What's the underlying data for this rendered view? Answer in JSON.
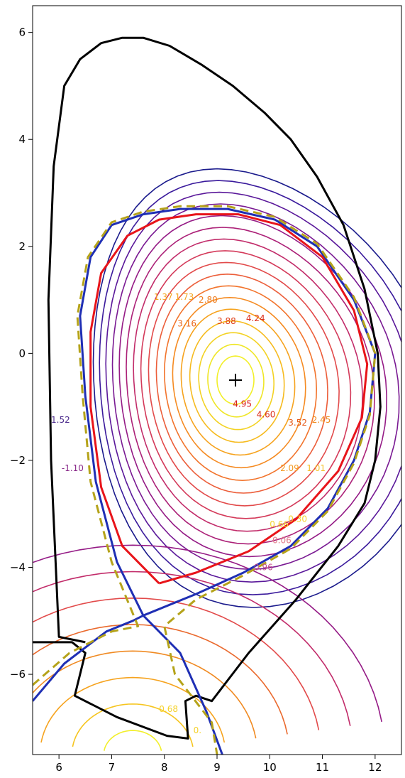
{
  "chart_data": {
    "type": "contour",
    "title": "",
    "xlabel": "",
    "ylabel": "",
    "xlim": [
      5.5,
      12.5
    ],
    "ylim": [
      -7.5,
      6.5
    ],
    "xticks": [
      "6",
      "7",
      "8",
      "9",
      "10",
      "11",
      "12"
    ],
    "yticks": [
      "6",
      "4",
      "2",
      "0",
      "−2",
      "−4",
      "−6"
    ],
    "xtick_values": [
      6,
      7,
      8,
      9,
      10,
      11,
      12
    ],
    "ytick_values": [
      6,
      4,
      2,
      0,
      -2,
      -4,
      -6
    ],
    "magnetic_axis": {
      "x": 9.35,
      "y": -0.5,
      "marker": "+"
    },
    "x_point": {
      "x": 7.6,
      "y": -4.9
    },
    "colormap": "plasma",
    "contour_labels": [
      {
        "text": "1.37",
        "x": 7.8,
        "y": 1.0,
        "color": "#f5a623"
      },
      {
        "text": "1.73",
        "x": 8.2,
        "y": 1.0,
        "color": "#f5a623"
      },
      {
        "text": "2.80",
        "x": 8.65,
        "y": 0.95,
        "color": "#ef7a1a"
      },
      {
        "text": "3.16",
        "x": 8.25,
        "y": 0.5,
        "color": "#ea6516"
      },
      {
        "text": "3.88",
        "x": 9.0,
        "y": 0.55,
        "color": "#e0411a"
      },
      {
        "text": "4.24",
        "x": 9.55,
        "y": 0.6,
        "color": "#dc301c"
      },
      {
        "text": "4.95",
        "x": 9.3,
        "y": -1.0,
        "color": "#d81b1b"
      },
      {
        "text": "4.60",
        "x": 9.75,
        "y": -1.2,
        "color": "#dc301c"
      },
      {
        "text": "3.52",
        "x": 10.35,
        "y": -1.35,
        "color": "#e55a18"
      },
      {
        "text": "2.45",
        "x": 10.8,
        "y": -1.3,
        "color": "#f08a1f"
      },
      {
        "text": "2.09",
        "x": 10.2,
        "y": -2.2,
        "color": "#f49a22"
      },
      {
        "text": "1.01",
        "x": 10.7,
        "y": -2.2,
        "color": "#f5c02a"
      },
      {
        "text": "0.66",
        "x": 10.0,
        "y": -3.25,
        "color": "#f5d22c"
      },
      {
        "text": "0.30",
        "x": 10.35,
        "y": -3.15,
        "color": "#f5d22c"
      },
      {
        "text": "0.06",
        "x": 10.05,
        "y": -3.55,
        "color": "#e07a8a"
      },
      {
        "text": "0.96",
        "x": 9.7,
        "y": -4.05,
        "color": "#c04a8a"
      },
      {
        "text": "1.52",
        "x": 5.85,
        "y": -1.3,
        "color": "#4b2a8c"
      },
      {
        "text": "-1.10",
        "x": 6.05,
        "y": -2.2,
        "color": "#8a2a8a"
      },
      {
        "text": "0.68",
        "x": 7.9,
        "y": -6.7,
        "color": "#f5d22c"
      },
      {
        "text": "0.",
        "x": 8.55,
        "y": -7.1,
        "color": "#f5d22c"
      }
    ],
    "series": [
      {
        "role": "first-wall",
        "color": "#000000",
        "x": [
          6.5,
          6.0,
          5.85,
          5.8,
          5.9,
          6.1,
          6.4,
          6.8,
          7.2,
          7.6,
          8.1,
          8.7,
          9.3,
          9.9,
          10.4,
          10.9,
          11.4,
          11.8,
          12.05,
          12.1,
          12.0,
          11.8,
          11.3,
          10.5,
          9.6,
          8.9,
          8.6,
          8.4,
          8.45,
          8.05,
          7.1,
          6.3,
          6.5,
          6.25,
          5.5
        ],
        "y": [
          -5.4,
          -5.3,
          -2.0,
          1.0,
          3.5,
          5.0,
          5.5,
          5.8,
          5.9,
          5.9,
          5.75,
          5.4,
          5.0,
          4.5,
          4.0,
          3.3,
          2.4,
          1.2,
          0.0,
          -1.0,
          -2.0,
          -2.8,
          -3.6,
          -4.6,
          -5.6,
          -6.5,
          -6.4,
          -6.5,
          -7.2,
          -7.15,
          -6.8,
          -6.4,
          -5.6,
          -5.4,
          -5.4
        ]
      },
      {
        "role": "separatrix",
        "color": "#1f2fb4",
        "style": "solid",
        "x": [
          5.5,
          6.1,
          6.9,
          7.4,
          7.6,
          7.1,
          6.7,
          6.5,
          6.4,
          6.6,
          7.0,
          7.6,
          8.3,
          9.2,
          10.1,
          10.9,
          11.6,
          12.0,
          11.9,
          11.6,
          11.1,
          10.4,
          9.5,
          8.6,
          7.6,
          8.3,
          8.8,
          9.1
        ],
        "y": [
          -6.5,
          -5.8,
          -5.2,
          -5.0,
          -4.9,
          -3.9,
          -2.4,
          -0.8,
          0.7,
          1.8,
          2.4,
          2.6,
          2.7,
          2.7,
          2.5,
          2.0,
          1.0,
          0.0,
          -1.1,
          -2.0,
          -2.9,
          -3.6,
          -4.1,
          -4.5,
          -4.9,
          -5.6,
          -6.7,
          -7.5
        ]
      },
      {
        "role": "lcfs-target",
        "color": "#b5a31a",
        "style": "dashed",
        "x": [
          5.5,
          6.2,
          7.0,
          7.5,
          7.0,
          6.6,
          6.45,
          6.35,
          6.55,
          7.0,
          7.6,
          8.3,
          9.2,
          10.1,
          10.9,
          11.6,
          12.0,
          11.9,
          11.6,
          11.1,
          10.4,
          9.5,
          8.6,
          8.0,
          8.2,
          8.9,
          9.0
        ],
        "y": [
          -6.2,
          -5.6,
          -5.2,
          -5.1,
          -3.9,
          -2.4,
          -0.8,
          0.7,
          1.8,
          2.45,
          2.65,
          2.75,
          2.75,
          2.55,
          2.05,
          1.05,
          0.0,
          -1.15,
          -2.05,
          -2.95,
          -3.65,
          -4.15,
          -4.6,
          -5.1,
          -6.0,
          -6.9,
          -7.5
        ]
      },
      {
        "role": "boundary",
        "color": "#e8141a",
        "style": "solid",
        "x": [
          7.9,
          7.2,
          6.8,
          6.6,
          6.6,
          6.8,
          7.3,
          7.9,
          8.6,
          9.4,
          10.2,
          11.0,
          11.6,
          11.85,
          11.75,
          11.3,
          10.5,
          9.6,
          8.6,
          7.9
        ],
        "y": [
          -4.3,
          -3.6,
          -2.5,
          -1.0,
          0.4,
          1.5,
          2.2,
          2.5,
          2.6,
          2.6,
          2.4,
          1.8,
          0.8,
          -0.2,
          -1.2,
          -2.2,
          -3.1,
          -3.7,
          -4.1,
          -4.3
        ]
      }
    ]
  }
}
